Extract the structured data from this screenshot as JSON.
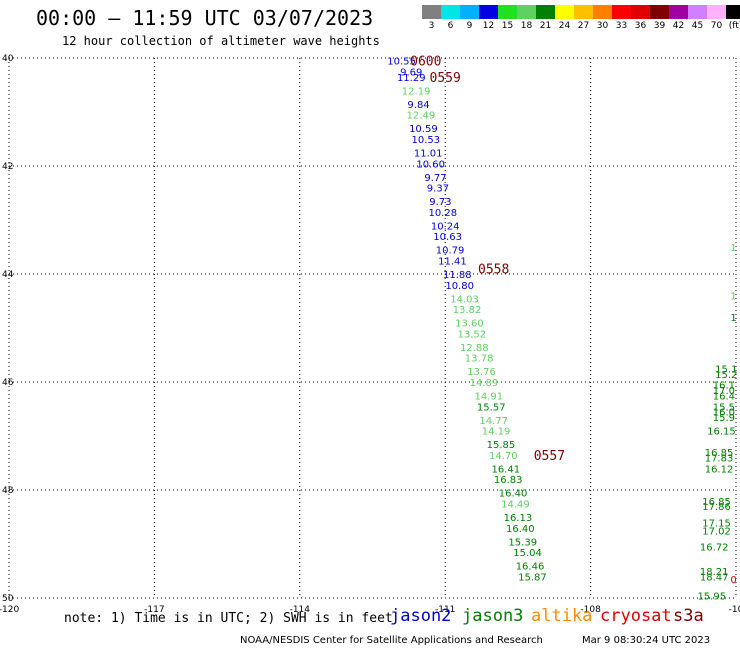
{
  "header": {
    "title": "00:00 – 11:59 UTC 03/07/2023",
    "subtitle": "12 hour collection of altimeter wave heights"
  },
  "color_scale": {
    "labels": [
      "3",
      "6",
      "9",
      "12",
      "15",
      "18",
      "21",
      "24",
      "27",
      "30",
      "33",
      "36",
      "39",
      "42",
      "45",
      "70",
      "(ft)"
    ],
    "colors": [
      "#808080",
      "#00e5e5",
      "#00b0ff",
      "#0000e0",
      "#20e020",
      "#60d060",
      "#008000",
      "#ffff00",
      "#ffc000",
      "#ff8000",
      "#ff0000",
      "#e00000",
      "#800000",
      "#a000a0",
      "#d080ff",
      "#ffb0ff",
      "#000000"
    ]
  },
  "footer": {
    "note": "note: 1) Time is in UTC; 2) SWH is in feet",
    "missions": [
      {
        "name": "jason2",
        "color": "#0000cc"
      },
      {
        "name": "jason3",
        "color": "#008000"
      },
      {
        "name": "altika",
        "color": "#ff8c00"
      },
      {
        "name": "cryosat",
        "color": "#e00000"
      },
      {
        "name": "s3a",
        "color": "#800000"
      }
    ],
    "credit": "NOAA/NESDIS Center for Satellite Applications and Research",
    "timestamp": "Mar  9 08:30:24 UTC 2023"
  },
  "chart_data": {
    "type": "scatter",
    "x_ticks": [
      "-120",
      "-117",
      "-114",
      "-111",
      "-108",
      "-10"
    ],
    "y_ticks": [
      "40",
      "42",
      "44",
      "46",
      "48",
      "50"
    ],
    "x_range": [
      -120,
      -105
    ],
    "y_range": [
      40,
      50
    ],
    "grid": true,
    "time_labels": [
      {
        "text": "0600",
        "lon": -111.4,
        "lat": 40.05
      },
      {
        "text": "0559",
        "lon": -111.0,
        "lat": 40.35
      },
      {
        "text": "0558",
        "lon": -110.0,
        "lat": 43.9
      },
      {
        "text": "0557",
        "lon": -108.85,
        "lat": 47.35
      }
    ],
    "main_track": [
      {
        "v": "10.55",
        "lon": -111.9,
        "lat": 40.05,
        "c": "#0000e0"
      },
      {
        "v": "9.69",
        "lon": -111.7,
        "lat": 40.25,
        "c": "#0000e0"
      },
      {
        "v": "11.29",
        "lon": -111.7,
        "lat": 40.35,
        "c": "#0000e0"
      },
      {
        "v": "12.19",
        "lon": -111.6,
        "lat": 40.6,
        "c": "#60d060"
      },
      {
        "v": "9.84",
        "lon": -111.55,
        "lat": 40.85,
        "c": "#0000e0"
      },
      {
        "v": "12.49",
        "lon": -111.5,
        "lat": 41.05,
        "c": "#60d060"
      },
      {
        "v": "10.59",
        "lon": -111.45,
        "lat": 41.3,
        "c": "#0000e0"
      },
      {
        "v": "10.53",
        "lon": -111.4,
        "lat": 41.5,
        "c": "#0000e0"
      },
      {
        "v": "11.01",
        "lon": -111.35,
        "lat": 41.75,
        "c": "#0000e0"
      },
      {
        "v": "10.60",
        "lon": -111.3,
        "lat": 41.95,
        "c": "#0000e0"
      },
      {
        "v": "9.77",
        "lon": -111.2,
        "lat": 42.2,
        "c": "#0000e0"
      },
      {
        "v": "9.37",
        "lon": -111.15,
        "lat": 42.4,
        "c": "#0000e0"
      },
      {
        "v": "9.73",
        "lon": -111.1,
        "lat": 42.65,
        "c": "#0000e0"
      },
      {
        "v": "10.28",
        "lon": -111.05,
        "lat": 42.85,
        "c": "#0000e0"
      },
      {
        "v": "10.24",
        "lon": -111.0,
        "lat": 43.1,
        "c": "#0000e0"
      },
      {
        "v": "10.63",
        "lon": -110.95,
        "lat": 43.3,
        "c": "#0000e0"
      },
      {
        "v": "10.79",
        "lon": -110.9,
        "lat": 43.55,
        "c": "#0000e0"
      },
      {
        "v": "11.41",
        "lon": -110.85,
        "lat": 43.75,
        "c": "#0000e0"
      },
      {
        "v": "11.88",
        "lon": -110.75,
        "lat": 44.0,
        "c": "#0000e0"
      },
      {
        "v": "10.80",
        "lon": -110.7,
        "lat": 44.2,
        "c": "#0000e0"
      },
      {
        "v": "14.03",
        "lon": -110.6,
        "lat": 44.45,
        "c": "#60d060"
      },
      {
        "v": "13.82",
        "lon": -110.55,
        "lat": 44.65,
        "c": "#60d060"
      },
      {
        "v": "13.60",
        "lon": -110.5,
        "lat": 44.9,
        "c": "#60d060"
      },
      {
        "v": "13.52",
        "lon": -110.45,
        "lat": 45.1,
        "c": "#60d060"
      },
      {
        "v": "12.88",
        "lon": -110.4,
        "lat": 45.35,
        "c": "#60d060"
      },
      {
        "v": "13.78",
        "lon": -110.3,
        "lat": 45.55,
        "c": "#60d060"
      },
      {
        "v": "13.76",
        "lon": -110.25,
        "lat": 45.8,
        "c": "#60d060"
      },
      {
        "v": "14.89",
        "lon": -110.2,
        "lat": 46.0,
        "c": "#60d060"
      },
      {
        "v": "14.91",
        "lon": -110.1,
        "lat": 46.25,
        "c": "#60d060"
      },
      {
        "v": "15.57",
        "lon": -110.05,
        "lat": 46.45,
        "c": "#008000"
      },
      {
        "v": "14.77",
        "lon": -110.0,
        "lat": 46.7,
        "c": "#60d060"
      },
      {
        "v": "14.19",
        "lon": -109.95,
        "lat": 46.9,
        "c": "#60d060"
      },
      {
        "v": "15.85",
        "lon": -109.85,
        "lat": 47.15,
        "c": "#008000"
      },
      {
        "v": "14.70",
        "lon": -109.8,
        "lat": 47.35,
        "c": "#60d060"
      },
      {
        "v": "16.41",
        "lon": -109.75,
        "lat": 47.6,
        "c": "#008000"
      },
      {
        "v": "16.83",
        "lon": -109.7,
        "lat": 47.8,
        "c": "#008000"
      },
      {
        "v": "16.40",
        "lon": -109.6,
        "lat": 48.05,
        "c": "#008000"
      },
      {
        "v": "14.49",
        "lon": -109.55,
        "lat": 48.25,
        "c": "#60d060"
      },
      {
        "v": "16.13",
        "lon": -109.5,
        "lat": 48.5,
        "c": "#008000"
      },
      {
        "v": "16.40",
        "lon": -109.45,
        "lat": 48.7,
        "c": "#008000"
      },
      {
        "v": "15.39",
        "lon": -109.4,
        "lat": 48.95,
        "c": "#008000"
      },
      {
        "v": "15.04",
        "lon": -109.3,
        "lat": 49.15,
        "c": "#008000"
      },
      {
        "v": "16.46",
        "lon": -109.25,
        "lat": 49.4,
        "c": "#008000"
      },
      {
        "v": "15.87",
        "lon": -109.2,
        "lat": 49.6,
        "c": "#008000"
      }
    ],
    "right_track": [
      {
        "v": "15.1",
        "lon": -105.2,
        "lat": 45.75,
        "c": "#008000"
      },
      {
        "v": "15.2",
        "lon": -105.2,
        "lat": 45.85,
        "c": "#008000"
      },
      {
        "v": "16.1",
        "lon": -105.25,
        "lat": 46.05,
        "c": "#008000"
      },
      {
        "v": "17.0",
        "lon": -105.25,
        "lat": 46.15,
        "c": "#008000"
      },
      {
        "v": "16.4",
        "lon": -105.25,
        "lat": 46.25,
        "c": "#008000"
      },
      {
        "v": "15.5",
        "lon": -105.25,
        "lat": 46.45,
        "c": "#008000"
      },
      {
        "v": "16.0",
        "lon": -105.25,
        "lat": 46.55,
        "c": "#008000"
      },
      {
        "v": "15.9",
        "lon": -105.25,
        "lat": 46.65,
        "c": "#008000"
      },
      {
        "v": "16.15",
        "lon": -105.3,
        "lat": 46.9,
        "c": "#008000"
      },
      {
        "v": "16.85",
        "lon": -105.35,
        "lat": 47.3,
        "c": "#008000"
      },
      {
        "v": "17.83",
        "lon": -105.35,
        "lat": 47.4,
        "c": "#008000"
      },
      {
        "v": "16.12",
        "lon": -105.35,
        "lat": 47.6,
        "c": "#008000"
      },
      {
        "v": "16.85",
        "lon": -105.4,
        "lat": 48.2,
        "c": "#008000"
      },
      {
        "v": "17.86",
        "lon": -105.4,
        "lat": 48.3,
        "c": "#008000"
      },
      {
        "v": "17.15",
        "lon": -105.4,
        "lat": 48.6,
        "c": "#008000"
      },
      {
        "v": "17.02",
        "lon": -105.4,
        "lat": 48.75,
        "c": "#008000"
      },
      {
        "v": "16.72",
        "lon": -105.45,
        "lat": 49.05,
        "c": "#008000"
      },
      {
        "v": "18.21",
        "lon": -105.45,
        "lat": 49.5,
        "c": "#008000"
      },
      {
        "v": "18.47",
        "lon": -105.45,
        "lat": 49.6,
        "c": "#008000"
      },
      {
        "v": "15.95",
        "lon": -105.5,
        "lat": 49.95,
        "c": "#008000"
      }
    ],
    "edge_marks": [
      {
        "v": "1",
        "lon": -105.05,
        "lat": 43.5,
        "c": "#60d060"
      },
      {
        "v": "1",
        "lon": -105.05,
        "lat": 44.4,
        "c": "#60d060"
      },
      {
        "v": "1",
        "lon": -105.05,
        "lat": 44.8,
        "c": "#008000"
      },
      {
        "v": "0",
        "lon": -105.05,
        "lat": 49.65,
        "c": "#e00000"
      }
    ]
  }
}
